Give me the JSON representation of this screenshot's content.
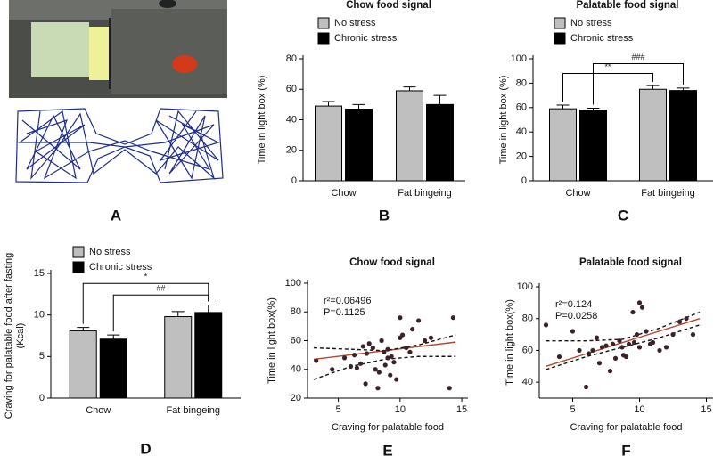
{
  "image_panel": {
    "panel": "A"
  },
  "chart_data": [
    {
      "type": "bar",
      "panel": "B",
      "title": "Chow food signal",
      "ylabel": [
        "Time in light box (%)"
      ],
      "categories": [
        "Chow",
        "Fat bingeing"
      ],
      "series": [
        {
          "name": "No stress",
          "color": "#bfbfbf",
          "values": [
            49,
            59
          ],
          "errors": [
            3,
            2.5
          ]
        },
        {
          "name": "Chronic stress",
          "color": "#000000",
          "values": [
            47,
            50
          ],
          "errors": [
            3,
            6
          ]
        }
      ],
      "ylim": [
        0,
        80
      ],
      "yticks": [
        0,
        20,
        40,
        60,
        80
      ]
    },
    {
      "type": "bar",
      "panel": "C",
      "title": "Palatable food signal",
      "ylabel": [
        "Time in light box (%)"
      ],
      "categories": [
        "Chow",
        "Fat bingeing"
      ],
      "series": [
        {
          "name": "No stress",
          "color": "#bfbfbf",
          "values": [
            59,
            75
          ],
          "errors": [
            3,
            3
          ]
        },
        {
          "name": "Chronic stress",
          "color": "#000000",
          "values": [
            58,
            74
          ],
          "errors": [
            1.5,
            2
          ]
        }
      ],
      "annotations": [
        {
          "text": "**"
        },
        {
          "text": "###"
        }
      ],
      "ylim": [
        0,
        100
      ],
      "yticks": [
        0,
        20,
        40,
        60,
        80,
        100
      ]
    },
    {
      "type": "bar",
      "panel": "D",
      "ylabel": [
        "Craving for palatable food after fasting",
        "(Kcal)"
      ],
      "categories": [
        "Chow",
        "Fat bingeing"
      ],
      "series": [
        {
          "name": "No stress",
          "color": "#bfbfbf",
          "values": [
            8.1,
            9.8
          ],
          "errors": [
            0.4,
            0.6
          ]
        },
        {
          "name": "Chronic stress",
          "color": "#000000",
          "values": [
            7.1,
            10.3
          ],
          "errors": [
            0.5,
            0.9
          ]
        }
      ],
      "annotations": [
        {
          "text": "*"
        },
        {
          "text": "##"
        }
      ],
      "ylim": [
        0,
        15
      ],
      "yticks": [
        0,
        5,
        10,
        15
      ]
    },
    {
      "type": "scatter",
      "panel": "E",
      "title": "Chow food signal",
      "xlabel": "Craving for palatable food",
      "ylabel": [
        "Time in light box(%)"
      ],
      "stats": [
        "r²=0.06496",
        "P=0.1125"
      ],
      "points": {
        "color": "#3a2228",
        "x": [
          3.2,
          4.5,
          5.5,
          6,
          6.3,
          6.8,
          7,
          7.2,
          7.5,
          7.8,
          8,
          8.2,
          8.5,
          8.7,
          8.8,
          9,
          9,
          9.2,
          9.5,
          9.7,
          10,
          10,
          10.2,
          10.5,
          10.8,
          11,
          11.5,
          12,
          12.5,
          14,
          14.3,
          6.5,
          7.3,
          8.3,
          9.3
        ],
        "y": [
          46,
          40,
          48,
          42,
          50,
          44,
          56,
          30,
          58,
          55,
          40,
          27,
          60,
          52,
          43,
          48,
          54,
          36,
          45,
          33,
          76,
          62,
          64,
          55,
          52,
          68,
          74,
          60,
          62,
          27,
          76,
          41,
          51,
          38,
          49
        ]
      },
      "lines": [
        {
          "color": "#b5452b",
          "dash": false,
          "x": [
            3,
            14.5
          ],
          "y": [
            47,
            59
          ]
        },
        {
          "color": "#111111",
          "dash": true,
          "x": [
            3,
            6,
            8.75,
            11.5,
            14.5
          ],
          "y": [
            55,
            54,
            53,
            57,
            64
          ]
        },
        {
          "color": "#111111",
          "dash": true,
          "x": [
            3,
            6,
            8.75,
            11.5,
            14.5
          ],
          "y": [
            33,
            42,
            47,
            49,
            49
          ]
        }
      ],
      "xlim": [
        2.5,
        15.5
      ],
      "xticks": [
        5,
        10,
        15
      ],
      "ylim": [
        20,
        100
      ],
      "yticks": [
        20,
        40,
        60,
        80,
        100
      ]
    },
    {
      "type": "scatter",
      "panel": "F",
      "title": "Palatable food signal",
      "xlabel": "Craving for palatable food",
      "ylabel": [
        "Time in light box(%)"
      ],
      "stats": [
        "r²=0.124",
        "P=0.0258"
      ],
      "points": {
        "color": "#3a2228",
        "x": [
          3,
          4,
          5,
          5.5,
          6,
          6.2,
          6.5,
          7,
          7.2,
          7.5,
          7.8,
          8,
          8.2,
          8.5,
          8.7,
          9,
          9.2,
          9.5,
          9.8,
          10,
          10,
          10.2,
          10.5,
          10.8,
          11,
          11.5,
          12,
          12.5,
          13,
          13.5,
          14,
          6.8,
          8.8,
          9.6
        ],
        "y": [
          76,
          56,
          72,
          60,
          37,
          58,
          60,
          52,
          62,
          63,
          47,
          64,
          55,
          66,
          62,
          56,
          64,
          84,
          70,
          90,
          62,
          87,
          72,
          64,
          65,
          60,
          62,
          70,
          78,
          80,
          70,
          68,
          57,
          65
        ]
      },
      "lines": [
        {
          "color": "#b5452b",
          "dash": false,
          "x": [
            3,
            14.5
          ],
          "y": [
            50,
            80
          ]
        },
        {
          "color": "#111111",
          "dash": true,
          "x": [
            3,
            6,
            8.75,
            11.5,
            14.5
          ],
          "y": [
            66,
            66,
            67,
            74,
            84
          ]
        },
        {
          "color": "#111111",
          "dash": true,
          "x": [
            3,
            6,
            8.75,
            11.5,
            14.5
          ],
          "y": [
            48,
            56,
            62,
            68,
            76
          ]
        }
      ],
      "xlim": [
        2.5,
        15.5
      ],
      "xticks": [
        5,
        10,
        15
      ],
      "ylim": [
        30,
        100
      ],
      "yticks": [
        40,
        60,
        80,
        100
      ]
    }
  ]
}
